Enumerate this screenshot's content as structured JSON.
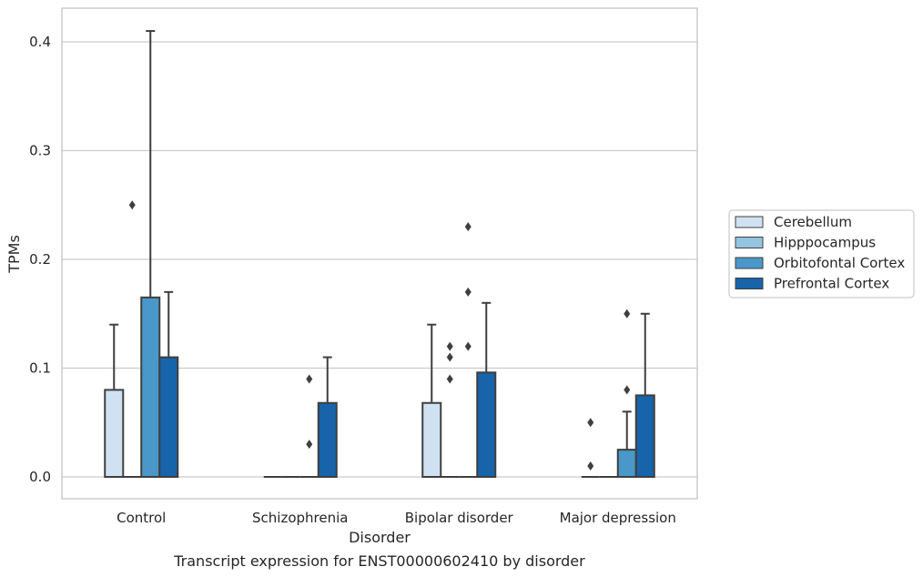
{
  "chart_data": {
    "type": "box",
    "caption": "Transcript expression for ENST00000602410 by disorder",
    "xlabel": "Disorder",
    "ylabel": "TPMs",
    "ylim": [
      -0.02,
      0.43
    ],
    "yticks": [
      0.0,
      0.1,
      0.2,
      0.3,
      0.4
    ],
    "ytick_labels": [
      "0.0",
      "0.1",
      "0.2",
      "0.3",
      "0.4"
    ],
    "grid": "horizontal",
    "legend_position": "outside-right",
    "categories": [
      "Control",
      "Schizophrenia",
      "Bipolar disorder",
      "Major depression"
    ],
    "series": [
      {
        "name": "Cerebellum",
        "color": "#d0e1f2",
        "boxes": [
          {
            "q1": 0.0,
            "median": 0.0,
            "q3": 0.08,
            "whisker_low": 0.0,
            "whisker_high": 0.14,
            "outliers": []
          },
          {
            "q1": 0.0,
            "median": 0.0,
            "q3": 0.0,
            "whisker_low": 0.0,
            "whisker_high": 0.0,
            "outliers": []
          },
          {
            "q1": 0.0,
            "median": 0.0,
            "q3": 0.068,
            "whisker_low": 0.0,
            "whisker_high": 0.14,
            "outliers": []
          },
          {
            "q1": 0.0,
            "median": 0.0,
            "q3": 0.0,
            "whisker_low": 0.0,
            "whisker_high": 0.0,
            "outliers": [
              0.05,
              0.01
            ]
          }
        ]
      },
      {
        "name": "Hipppocampus",
        "color": "#94c4df",
        "boxes": [
          {
            "q1": 0.0,
            "median": 0.0,
            "q3": 0.0,
            "whisker_low": 0.0,
            "whisker_high": 0.0,
            "outliers": [
              0.25
            ]
          },
          {
            "q1": 0.0,
            "median": 0.0,
            "q3": 0.0,
            "whisker_low": 0.0,
            "whisker_high": 0.0,
            "outliers": []
          },
          {
            "q1": 0.0,
            "median": 0.0,
            "q3": 0.0,
            "whisker_low": 0.0,
            "whisker_high": 0.0,
            "outliers": [
              0.12,
              0.11,
              0.09
            ]
          },
          {
            "q1": 0.0,
            "median": 0.0,
            "q3": 0.0,
            "whisker_low": 0.0,
            "whisker_high": 0.0,
            "outliers": []
          }
        ]
      },
      {
        "name": "Orbitofontal Cortex",
        "color": "#4a98c9",
        "boxes": [
          {
            "q1": 0.0,
            "median": 0.0,
            "q3": 0.165,
            "whisker_low": 0.0,
            "whisker_high": 0.41,
            "outliers": []
          },
          {
            "q1": 0.0,
            "median": 0.0,
            "q3": 0.0,
            "whisker_low": 0.0,
            "whisker_high": 0.0,
            "outliers": [
              0.09,
              0.03
            ]
          },
          {
            "q1": 0.0,
            "median": 0.0,
            "q3": 0.0,
            "whisker_low": 0.0,
            "whisker_high": 0.0,
            "outliers": [
              0.23,
              0.17,
              0.12
            ]
          },
          {
            "q1": 0.0,
            "median": 0.0,
            "q3": 0.025,
            "whisker_low": 0.0,
            "whisker_high": 0.06,
            "outliers": [
              0.15,
              0.08
            ]
          }
        ]
      },
      {
        "name": "Prefrontal Cortex",
        "color": "#1764ab",
        "boxes": [
          {
            "q1": 0.0,
            "median": 0.0,
            "q3": 0.11,
            "whisker_low": 0.0,
            "whisker_high": 0.17,
            "outliers": []
          },
          {
            "q1": 0.0,
            "median": 0.0,
            "q3": 0.068,
            "whisker_low": 0.0,
            "whisker_high": 0.11,
            "outliers": []
          },
          {
            "q1": 0.0,
            "median": 0.0,
            "q3": 0.096,
            "whisker_low": 0.0,
            "whisker_high": 0.16,
            "outliers": []
          },
          {
            "q1": 0.0,
            "median": 0.0,
            "q3": 0.075,
            "whisker_low": 0.0,
            "whisker_high": 0.15,
            "outliers": []
          }
        ]
      }
    ]
  },
  "colors": {
    "edge": "#3f3f3f",
    "grid": "#cccccc",
    "frame": "#cccccc"
  }
}
